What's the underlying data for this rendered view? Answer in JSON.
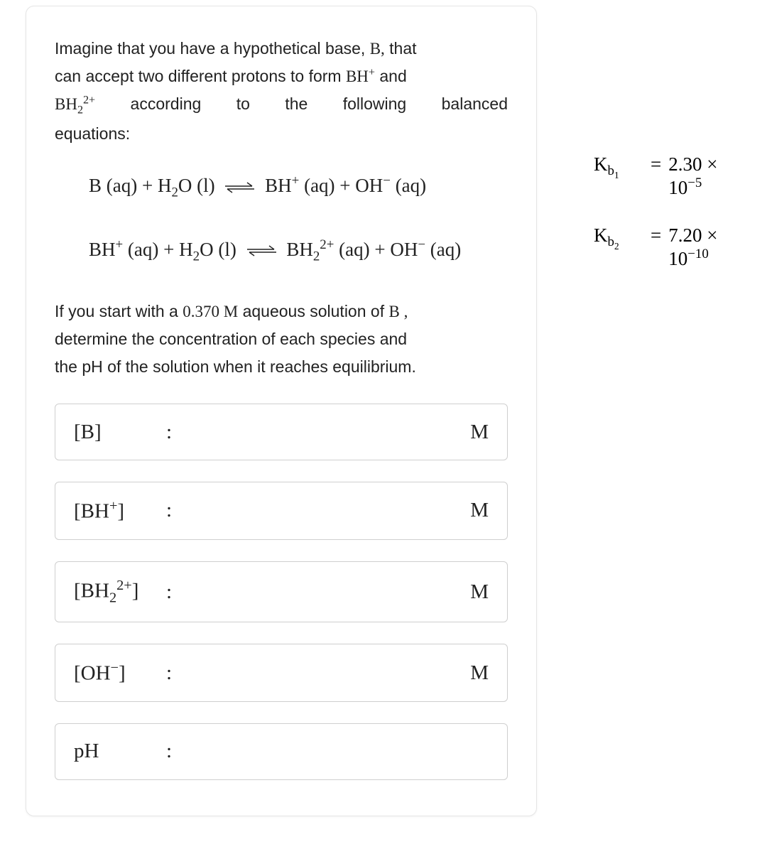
{
  "colors": {
    "text": "#222222",
    "border": "#cfcfcf",
    "card_border": "#e5e5e5",
    "background": "#ffffff"
  },
  "intro": {
    "line1_prefix": "Imagine that you have a hypothetical base, ",
    "base_symbol": "B,",
    "line1_suffix": " that",
    "line2_prefix": "can accept two different protons to form ",
    "bh_plus": "BH",
    "line2_suffix": " and",
    "bh2_sym": "BH",
    "line3_rest": " according to the following balanced",
    "line4": "equations:"
  },
  "equations": {
    "eq1": {
      "lhs_a": "B (aq)",
      "plus1": " + ",
      "lhs_b": "H",
      "lhs_b_sub": "2",
      "lhs_b_tail": "O (l)",
      "rhs_a": "BH",
      "rhs_a_tail": " (aq)",
      "plus2": " + ",
      "rhs_b": "OH",
      "rhs_b_tail": " (aq)"
    },
    "eq2": {
      "lhs_a": "BH",
      "lhs_a_tail": " (aq)",
      "plus1": " + ",
      "lhs_b": "H",
      "lhs_b_sub": "2",
      "lhs_b_tail": "O (l)",
      "rhs_a": "BH",
      "rhs_a_sub": "2",
      "rhs_a_sup": "2+",
      "rhs_a_tail": " (aq)",
      "plus2": " + ",
      "rhs_b": "OH",
      "rhs_b_tail": " (aq)"
    }
  },
  "constants": {
    "k1": {
      "label_main": "K",
      "label_sub": "b",
      "label_subsub": "1",
      "eq": "=",
      "mantissa": "2.30 ×",
      "exp_base": "10",
      "exp": "−5"
    },
    "k2": {
      "label_main": "K",
      "label_sub": "b",
      "label_subsub": "2",
      "eq": "=",
      "mantissa": "7.20 ×",
      "exp_base": "10",
      "exp": "−10"
    }
  },
  "question": {
    "l1a": "If you start with a ",
    "conc": "0.370 M",
    "l1b": " aqueous solution of ",
    "sym": "B ,",
    "l2": "determine the concentration of each species and",
    "l3": "the pH of the solution when it reaches equilibrium."
  },
  "answers": [
    {
      "label_open": "[",
      "label_body": "B",
      "label_sup": "",
      "label_sub": "",
      "label_close": "]",
      "unit": "M"
    },
    {
      "label_open": "[",
      "label_body": "BH",
      "label_sup": "+",
      "label_sub": "",
      "label_close": "]",
      "unit": "M"
    },
    {
      "label_open": "[",
      "label_body": "BH",
      "label_sup": "2+",
      "label_sub": "2",
      "label_close": "]",
      "unit": "M"
    },
    {
      "label_open": "[",
      "label_body": "OH",
      "label_sup": "−",
      "label_sub": "",
      "label_close": "]",
      "unit": "M"
    },
    {
      "label_open": "",
      "label_body": "pH",
      "label_sup": "",
      "label_sub": "",
      "label_close": "",
      "unit": ""
    }
  ],
  "symbols": {
    "colon": ":"
  }
}
